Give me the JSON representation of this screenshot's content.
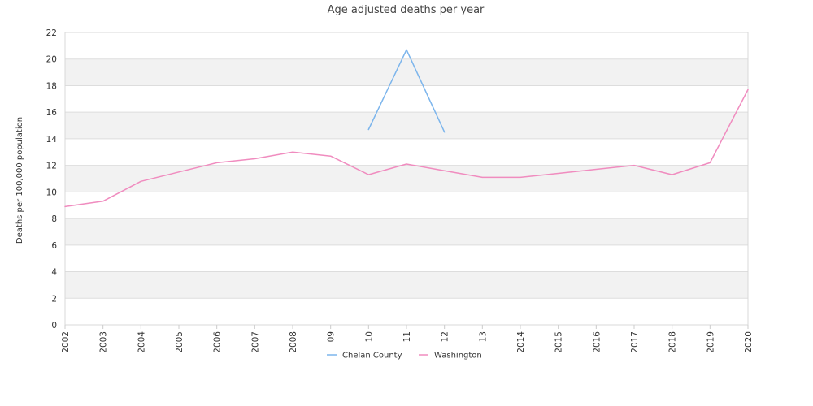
{
  "chart_data": {
    "type": "line",
    "title": "Age adjusted deaths per year",
    "xlabel": "",
    "ylabel": "Deaths per 100,000 population",
    "ylim": [
      0,
      22
    ],
    "yticks": [
      0,
      2,
      4,
      6,
      8,
      10,
      12,
      14,
      16,
      18,
      20,
      22
    ],
    "categories": [
      "2002",
      "2003",
      "2004",
      "2005",
      "2006",
      "2007",
      "2008",
      "09",
      "10",
      "11",
      "12",
      "13",
      "2014",
      "2015",
      "2016",
      "2017",
      "2018",
      "2019",
      "2020"
    ],
    "grid": "alternating horizontal bands",
    "legend_position": "bottom",
    "series": [
      {
        "name": "Chelan County",
        "color": "#7cb5ec",
        "values": [
          null,
          null,
          null,
          null,
          null,
          null,
          null,
          null,
          14.7,
          20.7,
          14.5,
          null,
          null,
          null,
          null,
          null,
          null,
          null,
          null
        ]
      },
      {
        "name": "Washington",
        "color": "#f08cbf",
        "values": [
          8.9,
          9.3,
          10.8,
          11.5,
          12.2,
          12.5,
          13.0,
          12.7,
          11.3,
          12.1,
          11.6,
          11.1,
          11.1,
          11.4,
          11.7,
          12.0,
          11.3,
          12.2,
          17.7
        ]
      }
    ]
  }
}
